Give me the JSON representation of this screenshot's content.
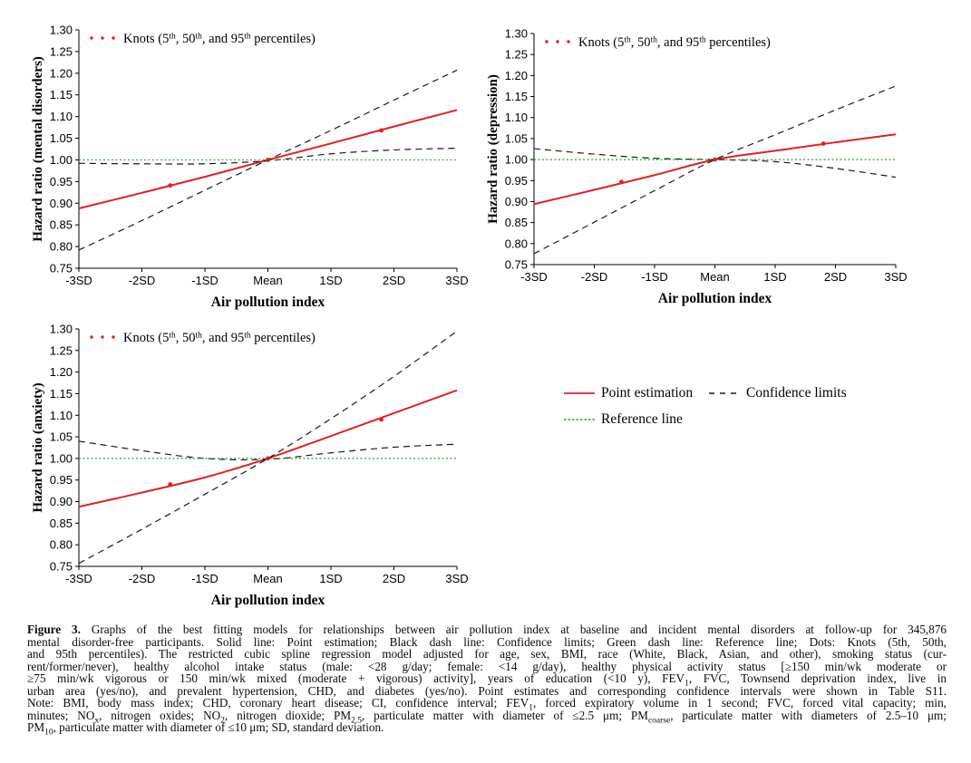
{
  "colors": {
    "point_estimation": "#e41e25",
    "confidence_limits": "#1a1a1a",
    "reference_line": "#2ca02c",
    "axis": "#000000"
  },
  "legend": {
    "items": [
      {
        "label": "Point estimation",
        "style": "solid",
        "color": "#e41e25"
      },
      {
        "label": "Confidence limits",
        "style": "dashed",
        "color": "#1a1a1a"
      },
      {
        "label": "Reference line",
        "style": "dotted",
        "color": "#2ca02c"
      }
    ]
  },
  "chart_data": [
    {
      "type": "line",
      "title": "",
      "ylabel": "Hazard ratio (mental disorders)",
      "xlabel": "Air pollution index",
      "x_categories": [
        "-3SD",
        "-2SD",
        "-1SD",
        "Mean",
        "1SD",
        "2SD",
        "3SD"
      ],
      "x_sd": [
        -3,
        -2,
        -1,
        0,
        1,
        2,
        3
      ],
      "ylim": [
        0.75,
        1.3
      ],
      "y_tick_labels": [
        "0.75",
        "0.80",
        "0.85",
        "0.90",
        "0.95",
        "1.00",
        "1.05",
        "1.10",
        "1.15",
        "1.20",
        "1.25",
        "1.30"
      ],
      "grid": false,
      "knots_label_runs": [
        {
          "t": "Knots (5"
        },
        {
          "t": "th",
          "sup": 1
        },
        {
          "t": ", 50"
        },
        {
          "t": "th",
          "sup": 1
        },
        {
          "t": ", and 95"
        },
        {
          "t": "th",
          "sup": 1
        },
        {
          "t": " percentiles)"
        }
      ],
      "series": [
        {
          "name": "Point estimation",
          "role": "point",
          "values": [
            0.888,
            0.924,
            0.961,
            1.0,
            1.038,
            1.077,
            1.115
          ]
        },
        {
          "name": "Confidence limit (steep)",
          "role": "ci",
          "values": [
            0.792,
            0.86,
            0.93,
            1.0,
            1.068,
            1.138,
            1.207
          ]
        },
        {
          "name": "Confidence limit (flat)",
          "role": "ci",
          "values": [
            0.992,
            0.991,
            0.991,
            0.998,
            1.014,
            1.023,
            1.027
          ]
        },
        {
          "name": "Reference line",
          "role": "reference",
          "values": [
            1.0,
            1.0,
            1.0,
            1.0,
            1.0,
            1.0,
            1.0
          ]
        }
      ],
      "knots": {
        "x_sd": [
          -1.55,
          0,
          1.8
        ],
        "values": [
          0.941,
          1.0,
          1.068
        ]
      }
    },
    {
      "type": "line",
      "title": "",
      "ylabel": "Hazard ratio (depression)",
      "xlabel": "Air pollution index",
      "x_categories": [
        "-3SD",
        "-2SD",
        "-1SD",
        "Mean",
        "1SD",
        "2SD",
        "3SD"
      ],
      "x_sd": [
        -3,
        -2,
        -1,
        0,
        1,
        2,
        3
      ],
      "ylim": [
        0.75,
        1.3
      ],
      "y_tick_labels": [
        "0.75",
        "0.80",
        "0.85",
        "0.90",
        "0.95",
        "1.00",
        "1.05",
        "1.10",
        "1.15",
        "1.20",
        "1.25",
        "1.30"
      ],
      "grid": false,
      "knots_label_runs": [
        {
          "t": "Knots (5"
        },
        {
          "t": "th",
          "sup": 1
        },
        {
          "t": ", 50"
        },
        {
          "t": "th",
          "sup": 1
        },
        {
          "t": ", and 95"
        },
        {
          "t": "th",
          "sup": 1
        },
        {
          "t": " percentiles)"
        }
      ],
      "series": [
        {
          "name": "Point estimation",
          "role": "point",
          "values": [
            0.894,
            0.928,
            0.963,
            1.0,
            1.021,
            1.041,
            1.06
          ]
        },
        {
          "name": "Confidence limit (steep)",
          "role": "ci",
          "values": [
            0.776,
            0.851,
            0.926,
            1.0,
            1.059,
            1.118,
            1.175
          ]
        },
        {
          "name": "Confidence limit (flat)",
          "role": "ci",
          "values": [
            1.026,
            1.013,
            1.003,
            1.0,
            0.995,
            0.979,
            0.958
          ]
        },
        {
          "name": "Reference line",
          "role": "reference",
          "values": [
            1.0,
            1.0,
            1.0,
            1.0,
            1.0,
            1.0,
            1.0
          ]
        }
      ],
      "knots": {
        "x_sd": [
          -1.55,
          0,
          1.8
        ],
        "values": [
          0.947,
          1.0,
          1.038
        ]
      }
    },
    {
      "type": "line",
      "title": "",
      "ylabel": "Hazard ratio (anxiety)",
      "xlabel": "Air pollution index",
      "x_categories": [
        "-3SD",
        "-2SD",
        "-1SD",
        "Mean",
        "1SD",
        "2SD",
        "3SD"
      ],
      "x_sd": [
        -3,
        -2,
        -1,
        0,
        1,
        2,
        3
      ],
      "ylim": [
        0.75,
        1.3
      ],
      "y_tick_labels": [
        "0.75",
        "0.80",
        "0.85",
        "0.90",
        "0.95",
        "1.00",
        "1.05",
        "1.10",
        "1.15",
        "1.20",
        "1.25",
        "1.30"
      ],
      "grid": false,
      "knots_label_runs": [
        {
          "t": "Knots (5"
        },
        {
          "t": "th",
          "sup": 1
        },
        {
          "t": ", 50"
        },
        {
          "t": "th",
          "sup": 1
        },
        {
          "t": ", and 95"
        },
        {
          "t": "th",
          "sup": 1
        },
        {
          "t": " percentiles)"
        }
      ],
      "series": [
        {
          "name": "Point estimation",
          "role": "point",
          "values": [
            0.888,
            0.921,
            0.956,
            1.0,
            1.052,
            1.105,
            1.158
          ]
        },
        {
          "name": "Confidence limit (steep)",
          "role": "ci",
          "values": [
            0.757,
            0.836,
            0.917,
            1.0,
            1.092,
            1.19,
            1.295
          ]
        },
        {
          "name": "Confidence limit (flat)",
          "role": "ci",
          "values": [
            1.04,
            1.018,
            1.0,
            0.998,
            1.013,
            1.026,
            1.033
          ]
        },
        {
          "name": "Reference line",
          "role": "reference",
          "values": [
            1.0,
            1.0,
            1.0,
            1.0,
            1.0,
            1.0,
            1.0
          ]
        }
      ],
      "knots": {
        "x_sd": [
          -1.55,
          0,
          1.8
        ],
        "values": [
          0.94,
          1.0,
          1.09
        ]
      }
    }
  ],
  "caption": {
    "lines": [
      {
        "jl": true,
        "runs": [
          {
            "t": "Figure 3.",
            "b": 1
          },
          {
            "t": " Graphs of the best fitting models for relationships between air pollution index at baseline and incident mental disorders at follow-up for 345,876"
          }
        ]
      },
      {
        "jl": true,
        "runs": [
          {
            "t": "mental disorder-free participants. Solid line: Point estimation; Black dash line: Confidence limits; Green dash line: Reference line; Dots: Knots (5th, 50th,"
          }
        ]
      },
      {
        "jl": true,
        "runs": [
          {
            "t": "and 95th percentiles). The restricted cubic spline regression model adjusted for age, sex, BMI, race (White, Black, Asian, and other), smoking status (cur-"
          }
        ]
      },
      {
        "jl": true,
        "runs": [
          {
            "t": "rent/former/never), healthy alcohol intake status (male: <28 g/day; female: <14 g/day), healthy physical activity status [≥150 min/wk moderate or"
          }
        ]
      },
      {
        "jl": true,
        "runs": [
          {
            "t": "≥75 min/wk vigorous or 150 min/wk mixed (moderate + vigorous) activity], years of education (<10 y), FEV"
          },
          {
            "t": "1",
            "sub": 1
          },
          {
            "t": ", FVC, Townsend deprivation index, live in"
          }
        ]
      },
      {
        "jl": true,
        "runs": [
          {
            "t": "urban area (yes/no), and prevalent hypertension, CHD, and diabetes (yes/no). Point estimates and corresponding confidence intervals were shown in Table S11."
          }
        ]
      },
      {
        "jl": true,
        "runs": [
          {
            "t": "Note: BMI, body mass index; CHD, coronary heart disease; CI, confidence interval; FEV"
          },
          {
            "t": "1",
            "sub": 1
          },
          {
            "t": ", forced expiratory volume in 1 second; FVC, forced vital capacity; min,"
          }
        ]
      },
      {
        "jl": true,
        "runs": [
          {
            "t": "minutes; NO"
          },
          {
            "t": "x",
            "sub": 1
          },
          {
            "t": ", nitrogen oxides; NO"
          },
          {
            "t": "2",
            "sub": 1
          },
          {
            "t": ", nitrogen dioxide; PM"
          },
          {
            "t": "2.5",
            "sub": 1
          },
          {
            "t": ", particulate matter with diameter of ≤2.5 μm; PM"
          },
          {
            "t": "coarse",
            "sub": 1
          },
          {
            "t": ", particulate matter with diameters of 2.5–10 μm;"
          }
        ]
      },
      {
        "jl": false,
        "runs": [
          {
            "t": "PM"
          },
          {
            "t": "10",
            "sub": 1
          },
          {
            "t": ", particulate matter with diameter of ≤10 μm; SD, standard deviation."
          }
        ]
      }
    ]
  }
}
